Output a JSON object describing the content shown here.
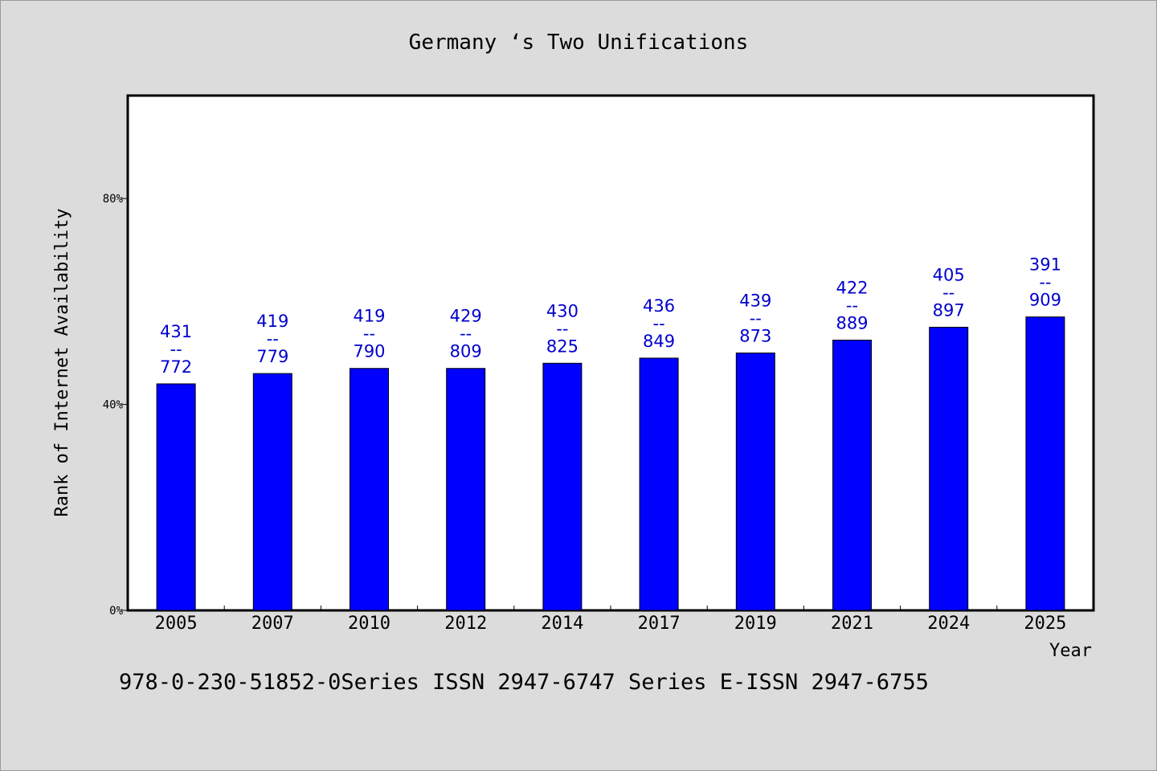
{
  "title": "Germany ‘s Two Unifications",
  "footer": "978-0-230-51852-0Series ISSN 2947-6747 Series E-ISSN 2947-6755",
  "colors": {
    "background": "#dcdcdc",
    "plot_background": "#ffffff",
    "bar": "#0000ff",
    "label": "#0000cc"
  },
  "chart_data": {
    "type": "bar",
    "title": "Germany ‘s Two Unifications",
    "xlabel": "Year",
    "ylabel": "Rank of Internet Availability",
    "ylim": [
      0,
      1
    ],
    "ytick_values": [
      0,
      0.4,
      0.8
    ],
    "ytick_labels": [
      "0%",
      "40%",
      "80%"
    ],
    "grid": false,
    "categories": [
      "2005",
      "2007",
      "2010",
      "2012",
      "2014",
      "2017",
      "2019",
      "2021",
      "2024",
      "2025"
    ],
    "values": [
      0.44,
      0.46,
      0.47,
      0.47,
      0.48,
      0.49,
      0.5,
      0.525,
      0.55,
      0.57
    ],
    "data_labels": [
      {
        "top": "431",
        "sep": "--",
        "bottom": "772"
      },
      {
        "top": "419",
        "sep": "--",
        "bottom": "779"
      },
      {
        "top": "419",
        "sep": "--",
        "bottom": "790"
      },
      {
        "top": "429",
        "sep": "--",
        "bottom": "809"
      },
      {
        "top": "430",
        "sep": "--",
        "bottom": "825"
      },
      {
        "top": "436",
        "sep": "--",
        "bottom": "849"
      },
      {
        "top": "439",
        "sep": "--",
        "bottom": "873"
      },
      {
        "top": "422",
        "sep": "--",
        "bottom": "889"
      },
      {
        "top": "405",
        "sep": "--",
        "bottom": "897"
      },
      {
        "top": "391",
        "sep": "--",
        "bottom": "909"
      }
    ]
  }
}
